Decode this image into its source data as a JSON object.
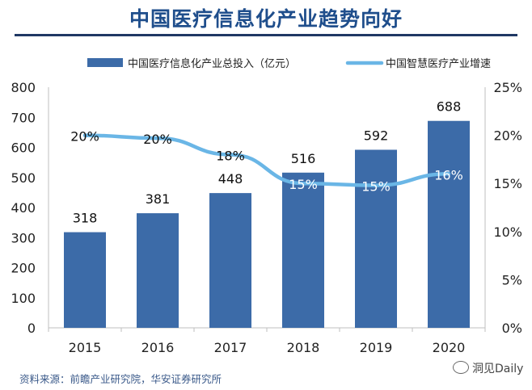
{
  "title": "中国医疗信息化产业趋势向好",
  "source": "资料来源：前瞻产业研究院，华安证券研究所",
  "watermark": "洞见Daily",
  "colors": {
    "bar": "#3c6ba8",
    "line": "#6ab6e6",
    "title": "#1f4e8c",
    "rule": "#1f3864",
    "axis": "#bfbfbf"
  },
  "chart_data": {
    "type": "bar",
    "categories": [
      "2015",
      "2016",
      "2017",
      "2018",
      "2019",
      "2020"
    ],
    "series": [
      {
        "name": "中国医疗信息化产业总投入（亿元）",
        "type": "bar",
        "axis": "left",
        "values": [
          318,
          381,
          448,
          516,
          592,
          688
        ],
        "labels": [
          "318",
          "381",
          "448",
          "516",
          "592",
          "688"
        ]
      },
      {
        "name": "中国智慧医疗产业增速",
        "type": "line",
        "axis": "right",
        "values": [
          20,
          19.7,
          18,
          15,
          14.8,
          16
        ],
        "labels": [
          "20%",
          "20%",
          "18%",
          "15%",
          "15%",
          "16%"
        ]
      }
    ],
    "y_left": {
      "min": 0,
      "max": 800,
      "ticks": [
        "0",
        "100",
        "200",
        "300",
        "400",
        "500",
        "600",
        "700",
        "800"
      ]
    },
    "y_right": {
      "min": 0,
      "max": 25,
      "ticks": [
        "0%",
        "5%",
        "10%",
        "15%",
        "20%",
        "25%"
      ]
    },
    "grid": false,
    "legend": "top"
  }
}
